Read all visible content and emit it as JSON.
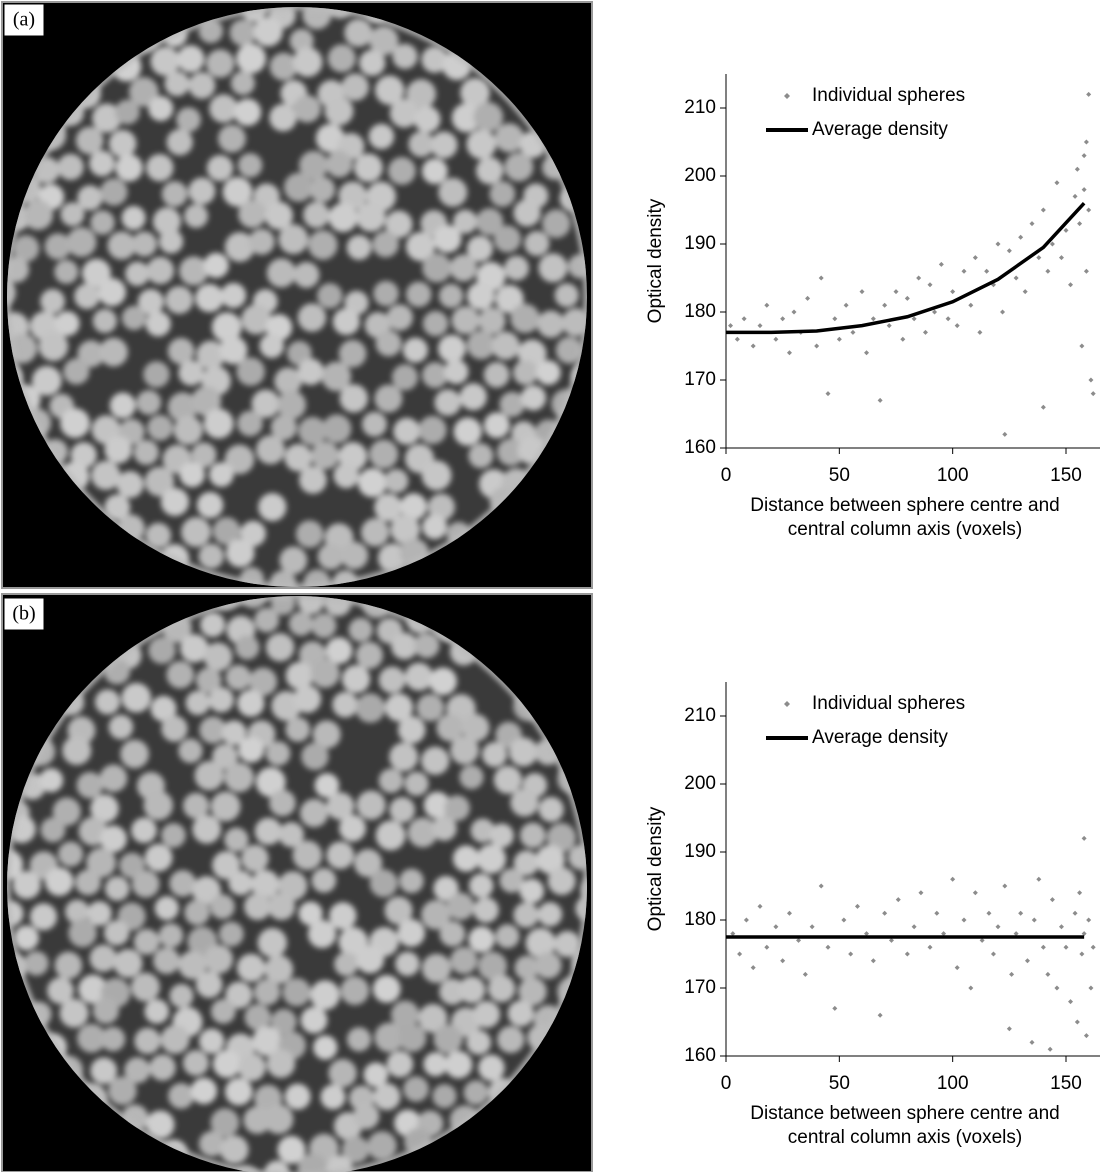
{
  "panel_labels": [
    "(a)",
    "(b)"
  ],
  "chart_data": [
    {
      "type": "scatter",
      "xlabel": [
        "Distance between sphere centre and",
        "central column axis (voxels)"
      ],
      "ylabel": "Optical density",
      "xlim": [
        0,
        165
      ],
      "xticks": [
        0,
        50,
        100,
        150
      ],
      "ylim": [
        160,
        215
      ],
      "yticks": [
        160,
        170,
        180,
        190,
        200,
        210
      ],
      "legend": "upper left",
      "series": [
        {
          "name": "Individual spheres",
          "color": "#8c8c8c",
          "marker": "diamond",
          "x": [
            2,
            5,
            8,
            12,
            15,
            18,
            22,
            25,
            28,
            30,
            33,
            36,
            40,
            42,
            45,
            48,
            50,
            53,
            56,
            60,
            62,
            65,
            68,
            70,
            72,
            75,
            78,
            80,
            83,
            85,
            88,
            90,
            92,
            95,
            98,
            100,
            102,
            105,
            108,
            110,
            112,
            115,
            118,
            120,
            122,
            125,
            128,
            130,
            132,
            135,
            138,
            140,
            142,
            144,
            146,
            148,
            150,
            152,
            154,
            155,
            156,
            157,
            158,
            158,
            159,
            159,
            160,
            160,
            161,
            162,
            123,
            140
          ],
          "values": [
            178,
            176,
            179,
            175,
            178,
            181,
            176,
            179,
            174,
            180,
            177,
            182,
            175,
            185,
            168,
            179,
            176,
            181,
            177,
            183,
            174,
            179,
            167,
            181,
            178,
            183,
            176,
            182,
            179,
            185,
            177,
            184,
            180,
            187,
            179,
            183,
            178,
            186,
            181,
            188,
            177,
            186,
            184,
            190,
            180,
            189,
            185,
            191,
            183,
            193,
            188,
            195,
            186,
            190,
            199,
            188,
            192,
            184,
            197,
            201,
            193,
            175,
            203,
            198,
            186,
            205,
            195,
            212,
            170,
            168,
            162,
            166
          ]
        },
        {
          "name": "Average density",
          "color": "#000000",
          "line": true,
          "x": [
            0,
            20,
            40,
            60,
            80,
            100,
            120,
            140,
            158
          ],
          "values": [
            177,
            177,
            177.2,
            178,
            179.3,
            181.5,
            184.8,
            189.5,
            196
          ]
        }
      ]
    },
    {
      "type": "scatter",
      "xlabel": [
        "Distance between sphere centre and",
        "central column axis (voxels)"
      ],
      "ylabel": "Optical density",
      "xlim": [
        0,
        165
      ],
      "xticks": [
        0,
        50,
        100,
        150
      ],
      "ylim": [
        160,
        215
      ],
      "yticks": [
        160,
        170,
        180,
        190,
        200,
        210
      ],
      "legend": "upper left",
      "series": [
        {
          "name": "Individual spheres",
          "color": "#8c8c8c",
          "marker": "diamond",
          "x": [
            3,
            6,
            9,
            12,
            15,
            18,
            22,
            25,
            28,
            32,
            35,
            38,
            42,
            45,
            48,
            52,
            55,
            58,
            62,
            65,
            68,
            70,
            73,
            76,
            80,
            83,
            86,
            90,
            93,
            96,
            100,
            102,
            105,
            108,
            110,
            113,
            116,
            118,
            120,
            123,
            126,
            128,
            130,
            133,
            136,
            138,
            140,
            142,
            144,
            146,
            148,
            150,
            152,
            154,
            155,
            156,
            157,
            158,
            158,
            159,
            160,
            161,
            162,
            125,
            135,
            143
          ],
          "values": [
            178,
            175,
            180,
            173,
            182,
            176,
            179,
            174,
            181,
            177,
            172,
            179,
            185,
            176,
            167,
            180,
            175,
            182,
            178,
            174,
            166,
            181,
            177,
            183,
            175,
            179,
            184,
            176,
            181,
            178,
            186,
            173,
            180,
            170,
            184,
            177,
            181,
            175,
            179,
            185,
            172,
            178,
            181,
            174,
            180,
            186,
            176,
            172,
            183,
            170,
            179,
            176,
            168,
            181,
            165,
            184,
            175,
            192,
            178,
            163,
            180,
            170,
            176,
            164,
            162,
            161
          ]
        },
        {
          "name": "Average density",
          "color": "#000000",
          "line": true,
          "x": [
            0,
            40,
            80,
            120,
            158
          ],
          "values": [
            177.5,
            177.5,
            177.5,
            177.5,
            177.5
          ]
        }
      ]
    }
  ]
}
